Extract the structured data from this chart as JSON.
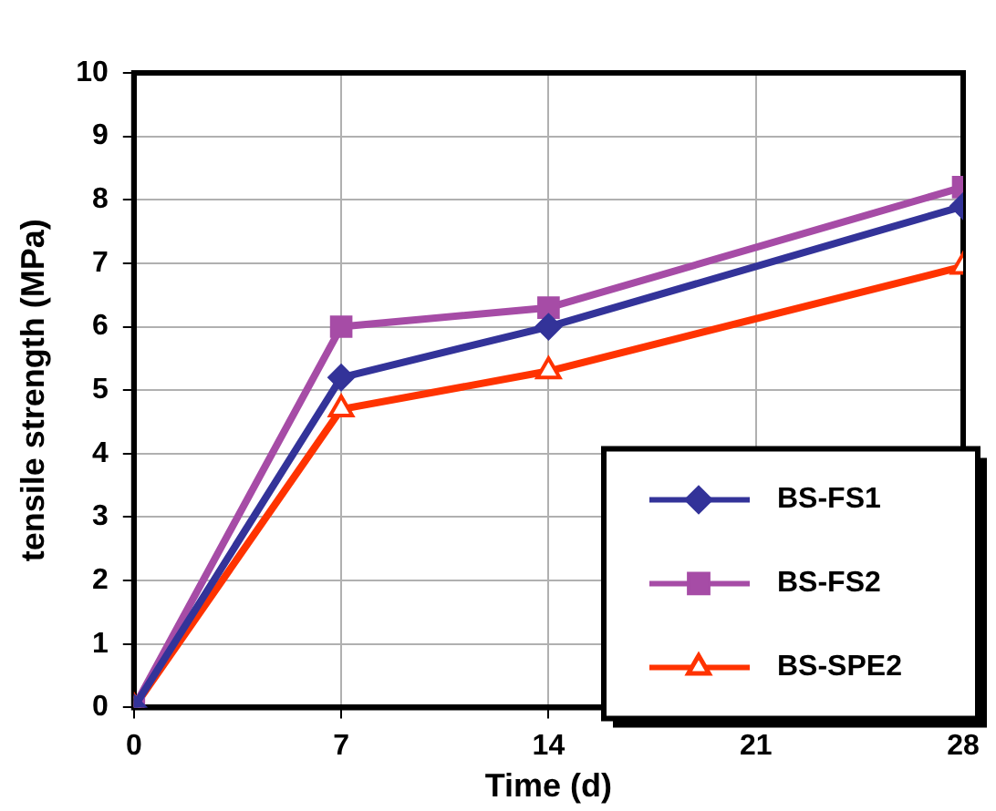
{
  "chart_data": {
    "type": "line",
    "xlabel": "Time (d)",
    "ylabel": "tensile strength (MPa)",
    "x": [
      0,
      7,
      14,
      28
    ],
    "series": [
      {
        "name": "BS-FS1",
        "color": "#333399",
        "marker": "diamond",
        "values": [
          0,
          5.2,
          6.0,
          7.9
        ]
      },
      {
        "name": "BS-FS2",
        "color": "#a64ca6",
        "marker": "square",
        "values": [
          0,
          6.0,
          6.3,
          8.2
        ]
      },
      {
        "name": "BS-SPE2",
        "color": "#ff3300",
        "marker": "triangle",
        "values": [
          0,
          4.7,
          5.3,
          6.95
        ]
      }
    ],
    "xlim": [
      0,
      28
    ],
    "xticks": [
      0,
      7,
      14,
      21,
      28
    ],
    "ylim": [
      0,
      10
    ],
    "yticks": [
      0,
      1,
      2,
      3,
      4,
      5,
      6,
      7,
      8,
      9,
      10
    ],
    "grid": true,
    "legend": "bottom right",
    "line_style": "solid"
  }
}
